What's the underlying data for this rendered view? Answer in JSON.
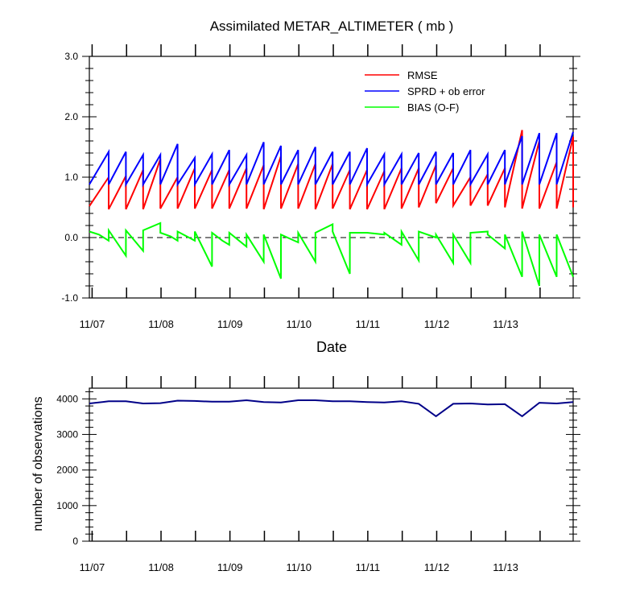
{
  "chart_data": [
    {
      "type": "line",
      "title": "Assimilated METAR_ALTIMETER ( mb )",
      "xlabel": "Date",
      "ylabel": "",
      "ylim": [
        -1.0,
        3.0
      ],
      "yticks": [
        "3.0",
        "2.0",
        "1.0",
        "0.0",
        "-1.0"
      ],
      "x_tick_labels": [
        "11/07",
        "11/08",
        "11/09",
        "11/10",
        "11/11",
        "11/12",
        "11/13"
      ],
      "x_tick_days": [
        7,
        8,
        9,
        10,
        11,
        12,
        13
      ],
      "xlim_days": [
        6.96,
        13.98
      ],
      "zero_line": "dashed",
      "legend_position": "top-right",
      "series": [
        {
          "name": "RMSE",
          "color": "#ff0000",
          "x_days": [
            6.96,
            7.24,
            7.24,
            7.49,
            7.49,
            7.74,
            7.74,
            7.99,
            7.99,
            8.24,
            8.24,
            8.49,
            8.49,
            8.74,
            8.74,
            8.99,
            8.99,
            9.24,
            9.24,
            9.49,
            9.49,
            9.74,
            9.74,
            9.99,
            9.99,
            10.24,
            10.24,
            10.49,
            10.49,
            10.74,
            10.74,
            10.99,
            10.99,
            11.24,
            11.24,
            11.49,
            11.49,
            11.74,
            11.74,
            11.99,
            11.99,
            12.24,
            12.24,
            12.49,
            12.49,
            12.74,
            12.74,
            12.99,
            12.99,
            13.24,
            13.24,
            13.49,
            13.49,
            13.74,
            13.74,
            13.98,
            13.98
          ],
          "values": [
            0.52,
            1.0,
            0.47,
            1.02,
            0.47,
            1.12,
            0.47,
            1.3,
            0.48,
            1.0,
            0.48,
            1.15,
            0.48,
            1.12,
            0.48,
            1.12,
            0.48,
            1.15,
            0.48,
            1.2,
            0.47,
            1.35,
            0.48,
            1.22,
            0.48,
            1.22,
            0.47,
            1.22,
            0.48,
            1.12,
            0.47,
            1.12,
            0.47,
            1.1,
            0.47,
            1.15,
            0.48,
            1.15,
            0.5,
            1.2,
            0.57,
            1.15,
            0.53,
            1.0,
            0.53,
            1.05,
            0.53,
            1.15,
            0.5,
            1.78,
            0.48,
            1.6,
            0.48,
            1.25,
            0.48,
            1.67,
            0.5
          ]
        },
        {
          "name": "SPRD + ob error",
          "color": "#0000ff",
          "x_days": [
            6.96,
            7.24,
            7.24,
            7.49,
            7.49,
            7.74,
            7.74,
            7.99,
            7.99,
            8.24,
            8.24,
            8.49,
            8.49,
            8.74,
            8.74,
            8.99,
            8.99,
            9.24,
            9.24,
            9.49,
            9.49,
            9.74,
            9.74,
            9.99,
            9.99,
            10.24,
            10.24,
            10.49,
            10.49,
            10.74,
            10.74,
            10.99,
            10.99,
            11.24,
            11.24,
            11.49,
            11.49,
            11.74,
            11.74,
            11.99,
            11.99,
            12.24,
            12.24,
            12.49,
            12.49,
            12.74,
            12.74,
            12.99,
            12.99,
            13.24,
            13.24,
            13.49,
            13.49,
            13.74,
            13.74,
            13.98
          ],
          "values": [
            0.88,
            1.42,
            0.88,
            1.42,
            0.88,
            1.37,
            0.88,
            1.37,
            0.88,
            1.55,
            0.88,
            1.32,
            0.88,
            1.38,
            0.88,
            1.45,
            0.88,
            1.37,
            0.88,
            1.58,
            0.88,
            1.52,
            0.88,
            1.45,
            0.88,
            1.5,
            0.88,
            1.42,
            0.88,
            1.42,
            0.88,
            1.48,
            0.88,
            1.38,
            0.88,
            1.38,
            0.88,
            1.4,
            0.88,
            1.42,
            0.88,
            1.4,
            0.88,
            1.45,
            0.88,
            1.38,
            0.88,
            1.45,
            0.88,
            1.68,
            0.88,
            1.73,
            0.88,
            1.73,
            0.88,
            1.75
          ]
        },
        {
          "name": "BIAS (O-F)",
          "color": "#00ff00",
          "x_days": [
            6.96,
            7.1,
            7.24,
            7.24,
            7.49,
            7.49,
            7.74,
            7.74,
            7.99,
            7.99,
            8.14,
            8.24,
            8.24,
            8.49,
            8.49,
            8.74,
            8.74,
            8.89,
            8.99,
            8.99,
            9.24,
            9.24,
            9.49,
            9.49,
            9.74,
            9.74,
            9.99,
            9.99,
            10.24,
            10.24,
            10.49,
            10.49,
            10.74,
            10.74,
            10.99,
            10.99,
            11.24,
            11.24,
            11.49,
            11.49,
            11.74,
            11.74,
            11.99,
            11.99,
            12.24,
            12.24,
            12.49,
            12.49,
            12.74,
            12.74,
            12.99,
            12.99,
            13.24,
            13.24,
            13.49,
            13.49,
            13.74,
            13.74,
            13.98
          ],
          "values": [
            0.1,
            0.05,
            -0.05,
            0.12,
            -0.3,
            0.12,
            -0.22,
            0.12,
            0.24,
            0.08,
            0.02,
            -0.05,
            0.1,
            -0.05,
            0.1,
            -0.48,
            0.08,
            -0.05,
            -0.12,
            0.08,
            -0.15,
            0.05,
            -0.4,
            0.05,
            -0.68,
            0.05,
            -0.08,
            0.08,
            -0.4,
            0.08,
            0.22,
            0.1,
            -0.6,
            0.08,
            0.08,
            0.08,
            0.05,
            0.08,
            -0.12,
            0.1,
            -0.38,
            0.1,
            0.0,
            0.05,
            -0.42,
            0.05,
            -0.42,
            0.08,
            0.1,
            0.05,
            -0.18,
            0.05,
            -0.65,
            0.1,
            -0.8,
            0.05,
            -0.65,
            0.05,
            -0.65
          ]
        }
      ]
    },
    {
      "type": "line",
      "title": "",
      "xlabel": "",
      "ylabel": "number of observations",
      "ylim": [
        0,
        4300
      ],
      "yticks": [
        "4000",
        "3000",
        "2000",
        "1000",
        "0"
      ],
      "x_tick_labels": [
        "11/07",
        "11/08",
        "11/09",
        "11/10",
        "11/11",
        "11/12",
        "11/13"
      ],
      "x_tick_days": [
        7,
        8,
        9,
        10,
        11,
        12,
        13
      ],
      "xlim_days": [
        6.96,
        13.98
      ],
      "series": [
        {
          "color": "#000088",
          "x_days": [
            6.96,
            7.24,
            7.49,
            7.74,
            7.99,
            8.24,
            8.49,
            8.74,
            8.99,
            9.24,
            9.49,
            9.74,
            9.99,
            10.24,
            10.49,
            10.74,
            10.99,
            11.24,
            11.49,
            11.74,
            11.99,
            12.24,
            12.49,
            12.74,
            12.99,
            13.24,
            13.49,
            13.74,
            13.98
          ],
          "values": [
            3870,
            3930,
            3930,
            3870,
            3880,
            3950,
            3940,
            3920,
            3920,
            3960,
            3910,
            3900,
            3960,
            3960,
            3930,
            3930,
            3910,
            3900,
            3930,
            3860,
            3510,
            3860,
            3870,
            3840,
            3850,
            3510,
            3890,
            3870,
            3910
          ]
        }
      ]
    }
  ]
}
